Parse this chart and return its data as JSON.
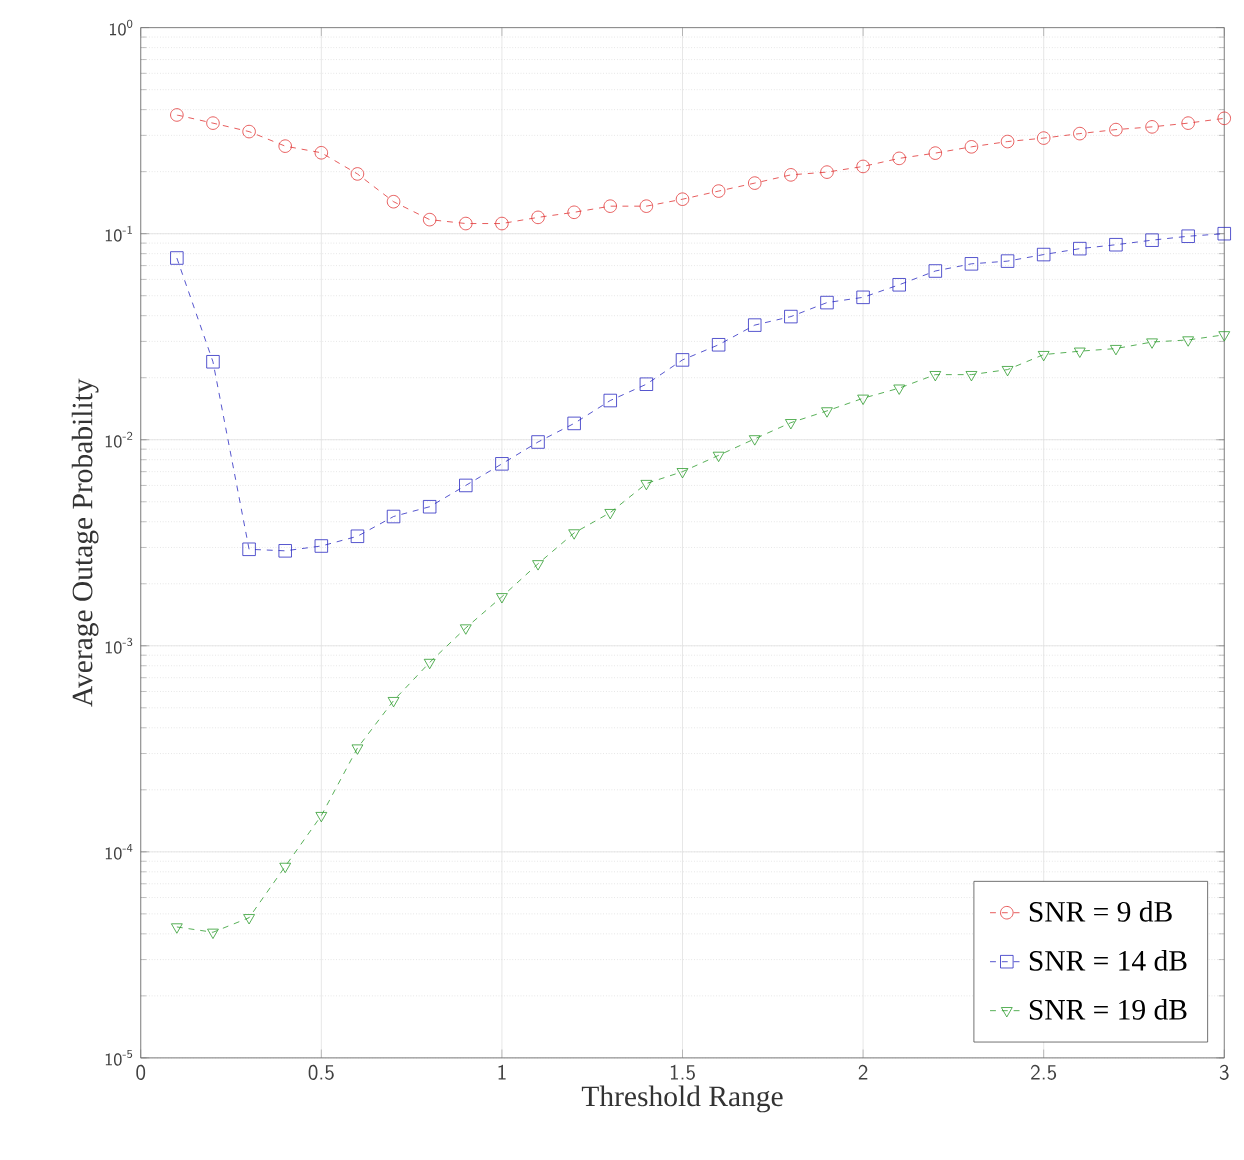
{
  "chart_data": {
    "type": "line",
    "xlabel": "Threshold Range",
    "ylabel": "Average Outage Probability",
    "x": [
      0.1,
      0.2,
      0.3,
      0.4,
      0.5,
      0.6,
      0.7,
      0.8,
      0.9,
      1.0,
      1.1,
      1.2,
      1.3,
      1.4,
      1.5,
      1.6,
      1.7,
      1.8,
      1.9,
      2.0,
      2.1,
      2.2,
      2.3,
      2.4,
      2.5,
      2.6,
      2.7,
      2.8,
      2.9,
      3.0
    ],
    "series": [
      {
        "name": "SNR = 9 dB",
        "color": "#e03030",
        "marker": "circle",
        "values": [
          0.377,
          0.344,
          0.313,
          0.266,
          0.247,
          0.195,
          0.143,
          0.117,
          0.112,
          0.112,
          0.12,
          0.127,
          0.136,
          0.136,
          0.147,
          0.161,
          0.176,
          0.193,
          0.199,
          0.212,
          0.232,
          0.246,
          0.264,
          0.28,
          0.291,
          0.306,
          0.32,
          0.33,
          0.344,
          0.363
        ]
      },
      {
        "name": "SNR = 14 dB",
        "color": "#2828c0",
        "marker": "square",
        "values": [
          0.0762,
          0.0239,
          0.00294,
          0.00289,
          0.00305,
          0.0034,
          0.00424,
          0.00473,
          0.006,
          0.00764,
          0.00975,
          0.012,
          0.0155,
          0.0186,
          0.0244,
          0.0289,
          0.036,
          0.0396,
          0.0463,
          0.0491,
          0.0565,
          0.0659,
          0.0714,
          0.0736,
          0.0792,
          0.0846,
          0.0884,
          0.093,
          0.0972,
          0.1
        ]
      },
      {
        "name": "SNR = 19 dB",
        "color": "#2a9a2a",
        "marker": "triangle",
        "values": [
          4.32e-05,
          4.07e-05,
          4.79e-05,
          8.5e-05,
          0.00015,
          0.000319,
          0.000542,
          0.00083,
          0.00122,
          0.00173,
          0.0025,
          0.00353,
          0.00443,
          0.00613,
          0.007,
          0.0084,
          0.0101,
          0.0121,
          0.0138,
          0.0159,
          0.0178,
          0.0207,
          0.0207,
          0.0219,
          0.0259,
          0.0269,
          0.0277,
          0.0298,
          0.0305,
          0.0323
        ]
      }
    ],
    "xlim": [
      0,
      3
    ],
    "xticks": [
      0,
      0.5,
      1,
      1.5,
      2,
      2.5,
      3
    ],
    "ylim": [
      1e-05,
      1
    ],
    "log": "y",
    "yticks": [
      {
        "value": 1e-05,
        "label": "10$^{-5}$"
      },
      {
        "value": 0.0001,
        "label": "10$^{-4}$"
      },
      {
        "value": 0.001,
        "label": "10$^{-3}$"
      },
      {
        "value": 0.01,
        "label": "10$^{-2}$"
      },
      {
        "value": 0.1,
        "label": "10$^{-1}$"
      },
      {
        "value": 1,
        "label": "10$^{0}$"
      }
    ],
    "grid": true,
    "legend": "bottom right",
    "line_style": "dashed"
  }
}
